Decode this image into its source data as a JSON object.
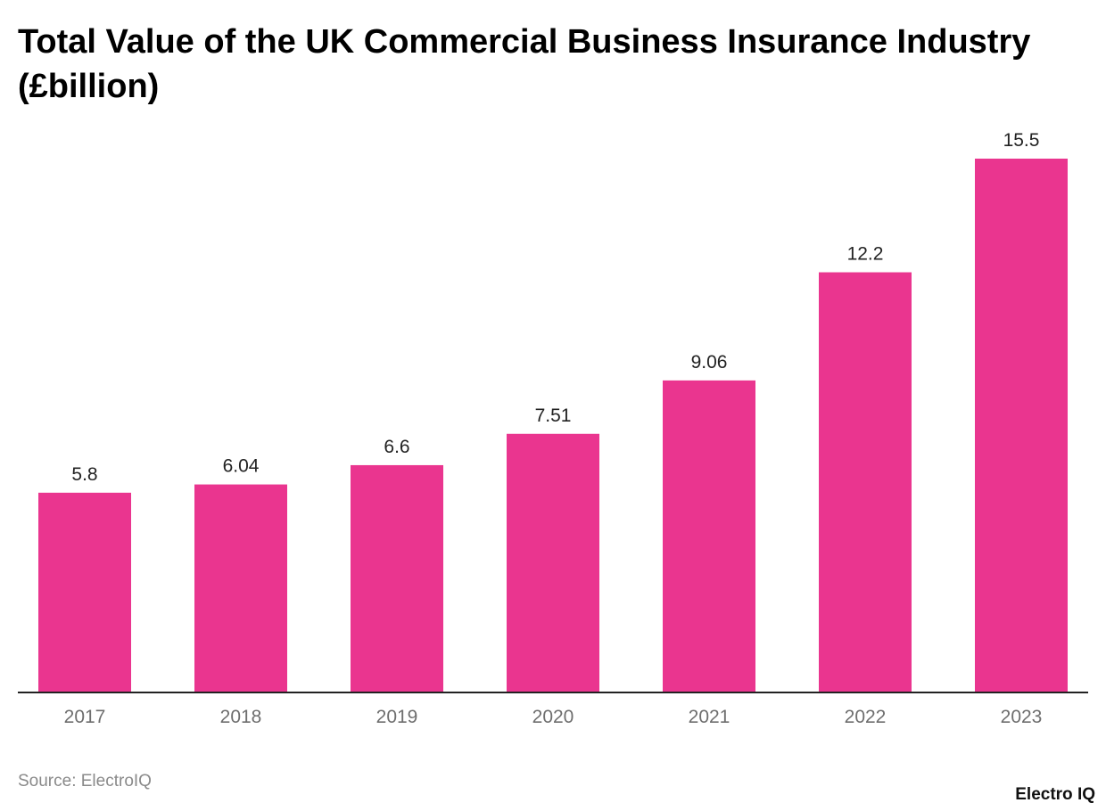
{
  "chart_data": {
    "type": "bar",
    "title": "Total Value of the UK Commercial Business Insurance Industry (£billion)",
    "categories": [
      "2017",
      "2018",
      "2019",
      "2020",
      "2021",
      "2022",
      "2023"
    ],
    "values": [
      5.8,
      6.04,
      6.6,
      7.51,
      9.06,
      12.2,
      15.5
    ],
    "ylim": [
      0,
      15.5
    ],
    "grid": false,
    "bar_color": "#EA358F",
    "source": "Source: ElectroIQ"
  },
  "logo": "Electro IQ"
}
